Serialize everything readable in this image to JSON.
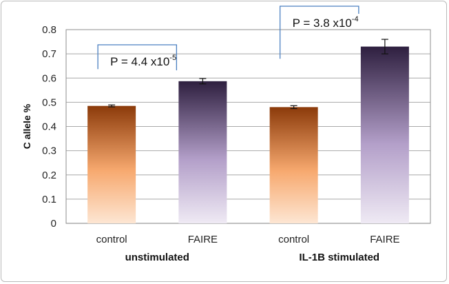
{
  "chart_data": {
    "type": "bar",
    "ylabel": "C allele %",
    "ylim": [
      0,
      0.8
    ],
    "yticks": [
      "0",
      "0.1",
      "0.2",
      "0.3",
      "0.4",
      "0.5",
      "0.6",
      "0.7",
      "0.8"
    ],
    "grid": true,
    "groups": [
      {
        "label": "unstimulated",
        "bars": [
          {
            "category": "control",
            "value": 0.485,
            "error": 0.004,
            "fill": "orange"
          },
          {
            "category": "FAIRE",
            "value": 0.587,
            "error": 0.011,
            "fill": "purple"
          }
        ]
      },
      {
        "label": "IL-1B stimulated",
        "bars": [
          {
            "category": "control",
            "value": 0.48,
            "error": 0.006,
            "fill": "orange"
          },
          {
            "category": "FAIRE",
            "value": 0.73,
            "error": 0.03,
            "fill": "purple"
          }
        ]
      }
    ],
    "annotations": [
      {
        "text_base": "P = 4.4 x10",
        "exponent": "-5",
        "group": 0
      },
      {
        "text_base": "P = 3.8 x10",
        "exponent": "-4",
        "group": 1
      }
    ]
  },
  "colors": {
    "orange_top": "#8b3a0a",
    "orange_mid": "#f7a96f",
    "orange_bottom": "#fde6d3",
    "purple_top": "#2e1f3f",
    "purple_mid": "#b39fc9",
    "purple_bottom": "#efeaf4",
    "bracket": "#4a7fc0",
    "grid": "#a8a8a8"
  }
}
